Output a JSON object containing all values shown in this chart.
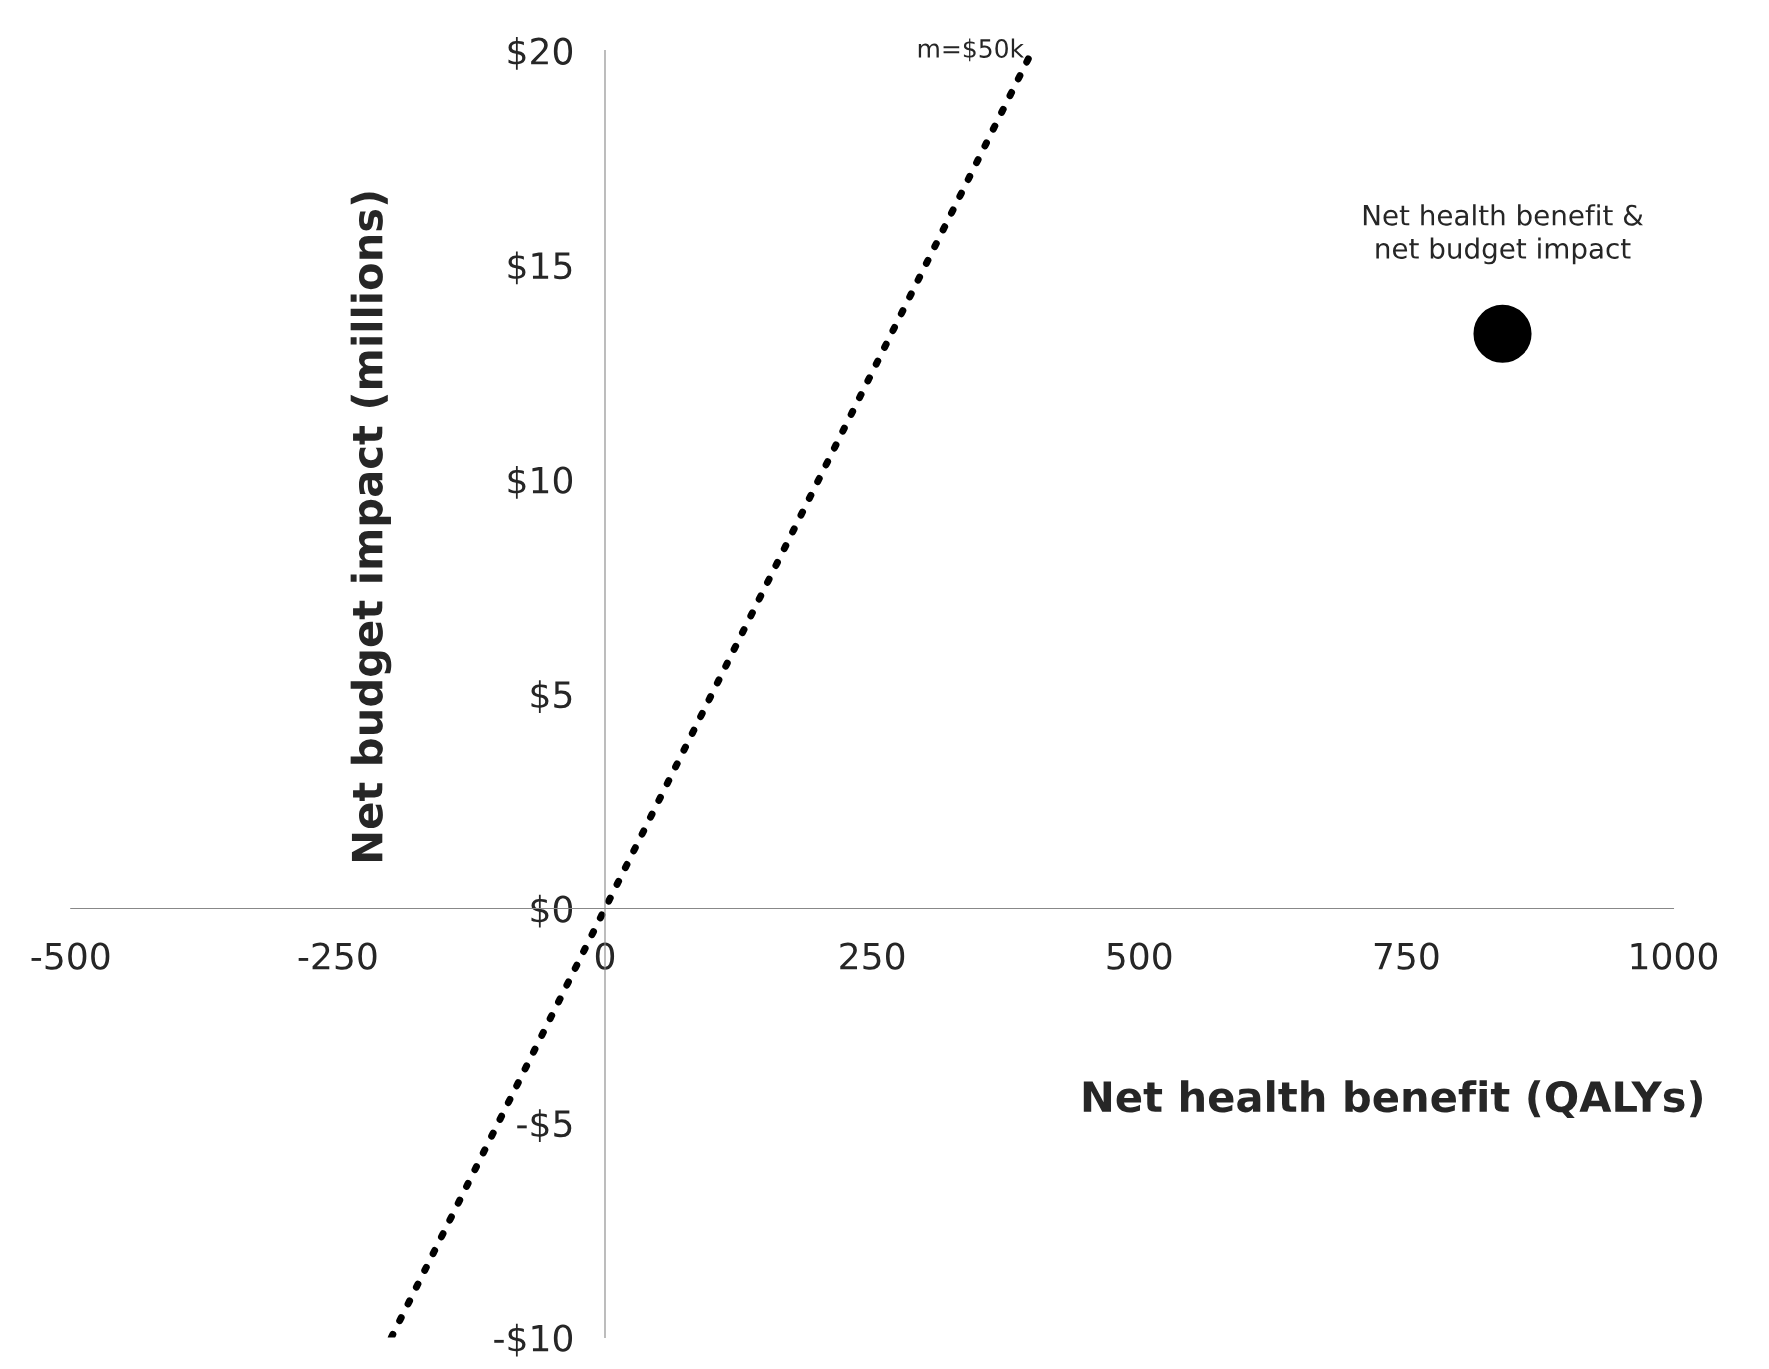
{
  "chart_data": {
    "type": "scatter",
    "xlabel": "Net health benefit (QALYs)",
    "ylabel": "Net budget impact (millions)",
    "series": [
      {
        "color": "#000000",
        "x": [
          840
        ],
        "values": [
          13.4
        ],
        "marker": "circle"
      },
      {
        "type": "line",
        "color": "#000000",
        "x": [
          -200,
          400
        ],
        "values": [
          -10,
          20
        ],
        "line_style": "dotted",
        "marker": "none"
      }
    ],
    "annotations": [
      {
        "text": "Net health benefit &\nnet budget impact",
        "x": 840,
        "y": 13.4
      },
      {
        "text": "m=$50k",
        "x": 400,
        "y": 20
      }
    ],
    "xlim": [
      -500,
      1000
    ],
    "xticks": [
      -500,
      -250,
      0,
      250,
      500,
      750,
      1000
    ],
    "ylim": [
      -10,
      20
    ],
    "yticks": [
      {
        "value": -10,
        "label": "-$10"
      },
      {
        "value": -5,
        "label": "-$5"
      },
      {
        "value": 0,
        "label": "$0"
      },
      {
        "value": 5,
        "label": "$5"
      },
      {
        "value": 10,
        "label": "$10"
      },
      {
        "value": 15,
        "label": "$15"
      },
      {
        "value": 20,
        "label": "$20"
      }
    ],
    "grid": false,
    "legend": false
  }
}
